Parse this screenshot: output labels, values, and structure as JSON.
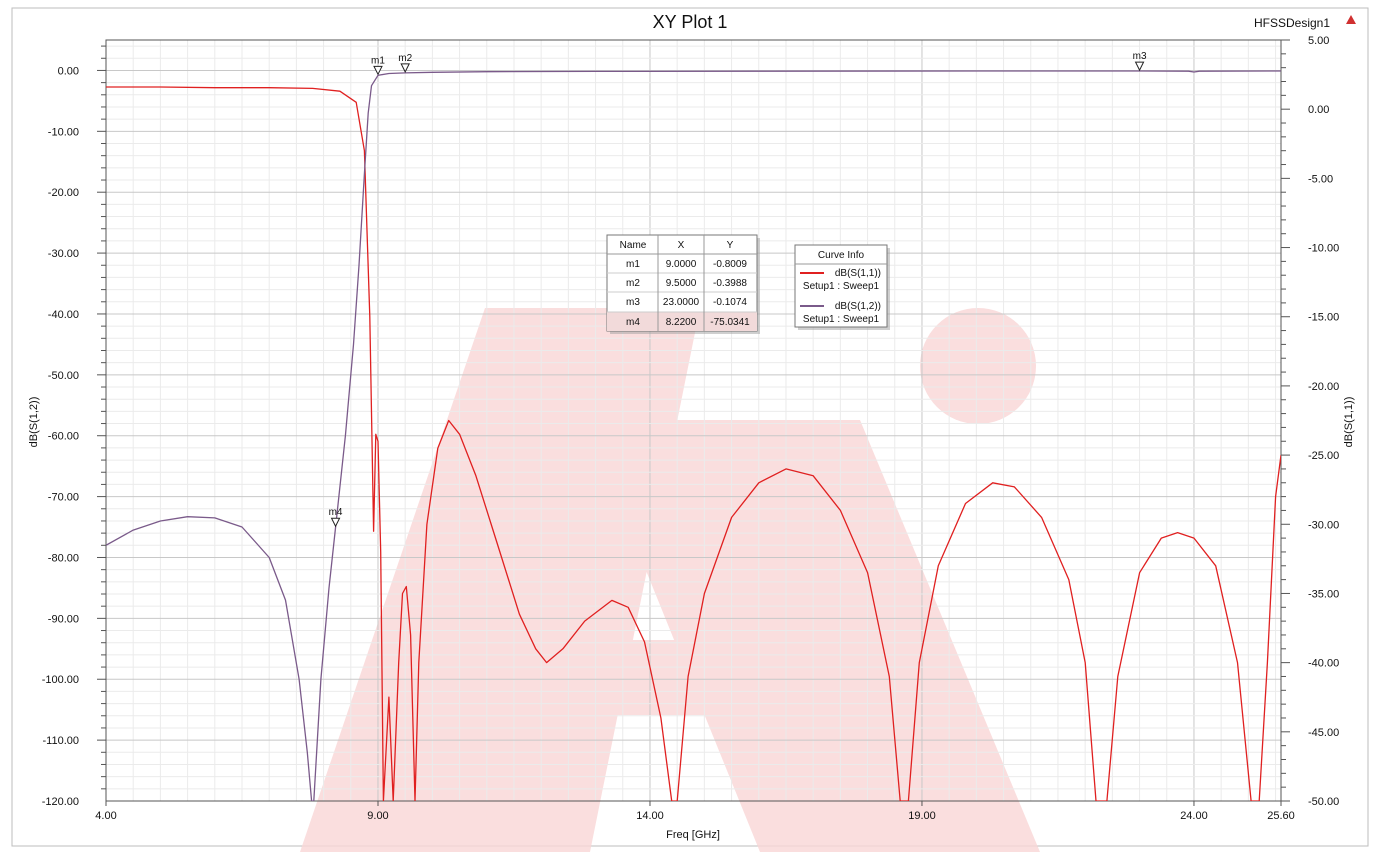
{
  "chart_data": {
    "type": "line",
    "title": "XY Plot 1",
    "design_name": "HFSSDesign1",
    "xlabel": "Freq [GHz]",
    "ylabel_left": "dB(S(1,2))",
    "ylabel_right": "dB(S(1,1))",
    "xlim": [
      4.0,
      25.6
    ],
    "ylim_left": [
      -120,
      5
    ],
    "ylim_right": [
      -50,
      5
    ],
    "x_ticks": [
      "4.00",
      "9.00",
      "14.00",
      "19.00",
      "24.00",
      "25.60"
    ],
    "x_tick_values": [
      4.0,
      9.0,
      14.0,
      19.0,
      24.0,
      25.6
    ],
    "y_left_ticks": [
      "0.00",
      "-10.00",
      "-20.00",
      "-30.00",
      "-40.00",
      "-50.00",
      "-60.00",
      "-70.00",
      "-80.00",
      "-90.00",
      "-100.00",
      "-110.00",
      "-120.00"
    ],
    "y_left_tick_values": [
      0,
      -10,
      -20,
      -30,
      -40,
      -50,
      -60,
      -70,
      -80,
      -90,
      -100,
      -110,
      -120
    ],
    "y_right_ticks": [
      "5.00",
      "0.00",
      "-5.00",
      "-10.00",
      "-15.00",
      "-20.00",
      "-25.00",
      "-30.00",
      "-35.00",
      "-40.00",
      "-45.00",
      "-50.00"
    ],
    "y_right_tick_values": [
      5,
      0,
      -5,
      -10,
      -15,
      -20,
      -25,
      -30,
      -35,
      -40,
      -45,
      -50
    ],
    "grid": true,
    "legend": {
      "title": "Curve Info",
      "entries": [
        {
          "label": "dB(S(1,1))",
          "sublabel": "Setup1 : Sweep1",
          "color": "#e02020"
        },
        {
          "label": "dB(S(1,2))",
          "sublabel": "Setup1 : Sweep1",
          "color": "#7a5a8a"
        }
      ]
    },
    "markers": {
      "headers": [
        "Name",
        "X",
        "Y"
      ],
      "rows": [
        {
          "name": "m1",
          "x": "9.0000",
          "y": "-0.8009",
          "xv": 9.0,
          "yv": -0.8009
        },
        {
          "name": "m2",
          "x": "9.5000",
          "y": "-0.3988",
          "xv": 9.5,
          "yv": -0.3988
        },
        {
          "name": "m3",
          "x": "23.0000",
          "y": "-0.1074",
          "xv": 23.0,
          "yv": -0.1074
        },
        {
          "name": "m4",
          "x": "8.2200",
          "y": "-75.0341",
          "xv": 8.22,
          "yv": -75.0341
        }
      ]
    },
    "series": [
      {
        "name": "dB(S(1,1))",
        "axis": "right",
        "color": "#e02020",
        "points": [
          [
            4.0,
            1.6
          ],
          [
            5.0,
            1.6
          ],
          [
            6.0,
            1.55
          ],
          [
            7.0,
            1.55
          ],
          [
            7.8,
            1.5
          ],
          [
            8.3,
            1.3
          ],
          [
            8.6,
            0.5
          ],
          [
            8.75,
            -3
          ],
          [
            8.85,
            -15
          ],
          [
            8.92,
            -30.5
          ],
          [
            8.96,
            -23.5
          ],
          [
            9.0,
            -24
          ],
          [
            9.05,
            -32
          ],
          [
            9.1,
            -50
          ],
          [
            9.2,
            -42.5
          ],
          [
            9.28,
            -50
          ],
          [
            9.38,
            -40
          ],
          [
            9.45,
            -35
          ],
          [
            9.52,
            -34.5
          ],
          [
            9.6,
            -38
          ],
          [
            9.68,
            -50
          ],
          [
            9.75,
            -40
          ],
          [
            9.9,
            -30
          ],
          [
            10.1,
            -24.5
          ],
          [
            10.3,
            -22.5
          ],
          [
            10.5,
            -23.5
          ],
          [
            10.8,
            -26.5
          ],
          [
            11.2,
            -31.5
          ],
          [
            11.6,
            -36.5
          ],
          [
            11.9,
            -39
          ],
          [
            12.1,
            -40
          ],
          [
            12.4,
            -39
          ],
          [
            12.8,
            -37
          ],
          [
            13.3,
            -35.5
          ],
          [
            13.6,
            -36
          ],
          [
            13.9,
            -38.5
          ],
          [
            14.2,
            -44
          ],
          [
            14.4,
            -50
          ],
          [
            14.5,
            -50
          ],
          [
            14.7,
            -41
          ],
          [
            15.0,
            -35
          ],
          [
            15.5,
            -29.5
          ],
          [
            16.0,
            -27
          ],
          [
            16.5,
            -26
          ],
          [
            17.0,
            -26.5
          ],
          [
            17.5,
            -29
          ],
          [
            18.0,
            -33.5
          ],
          [
            18.4,
            -41
          ],
          [
            18.6,
            -50
          ],
          [
            18.75,
            -50
          ],
          [
            18.95,
            -40
          ],
          [
            19.3,
            -33
          ],
          [
            19.8,
            -28.5
          ],
          [
            20.3,
            -27
          ],
          [
            20.7,
            -27.3
          ],
          [
            21.2,
            -29.5
          ],
          [
            21.7,
            -34
          ],
          [
            22.0,
            -40
          ],
          [
            22.2,
            -50
          ],
          [
            22.4,
            -50
          ],
          [
            22.6,
            -41
          ],
          [
            23.0,
            -33.5
          ],
          [
            23.4,
            -31
          ],
          [
            23.7,
            -30.6
          ],
          [
            24.0,
            -31
          ],
          [
            24.4,
            -33
          ],
          [
            24.8,
            -40
          ],
          [
            25.05,
            -50
          ],
          [
            25.2,
            -50
          ],
          [
            25.35,
            -40
          ],
          [
            25.5,
            -28
          ],
          [
            25.6,
            -25
          ]
        ]
      },
      {
        "name": "dB(S(1,2))",
        "axis": "left",
        "color": "#7a5a8a",
        "points": [
          [
            4.0,
            -78
          ],
          [
            4.5,
            -75.5
          ],
          [
            5.0,
            -74
          ],
          [
            5.5,
            -73.3
          ],
          [
            6.0,
            -73.5
          ],
          [
            6.5,
            -75
          ],
          [
            7.0,
            -80
          ],
          [
            7.3,
            -87
          ],
          [
            7.55,
            -100
          ],
          [
            7.7,
            -112
          ],
          [
            7.78,
            -120
          ],
          [
            7.82,
            -120
          ],
          [
            7.95,
            -100
          ],
          [
            8.1,
            -85
          ],
          [
            8.22,
            -75
          ],
          [
            8.4,
            -60
          ],
          [
            8.55,
            -45
          ],
          [
            8.65,
            -32
          ],
          [
            8.75,
            -17
          ],
          [
            8.82,
            -7
          ],
          [
            8.88,
            -2.5
          ],
          [
            9.0,
            -0.8
          ],
          [
            9.2,
            -0.5
          ],
          [
            9.5,
            -0.4
          ],
          [
            10.0,
            -0.3
          ],
          [
            11.0,
            -0.2
          ],
          [
            13.0,
            -0.15
          ],
          [
            16.0,
            -0.12
          ],
          [
            20.0,
            -0.1
          ],
          [
            23.0,
            -0.1
          ],
          [
            23.9,
            -0.12
          ],
          [
            24.0,
            -0.25
          ],
          [
            24.1,
            -0.12
          ],
          [
            25.6,
            -0.1
          ]
        ]
      }
    ]
  }
}
